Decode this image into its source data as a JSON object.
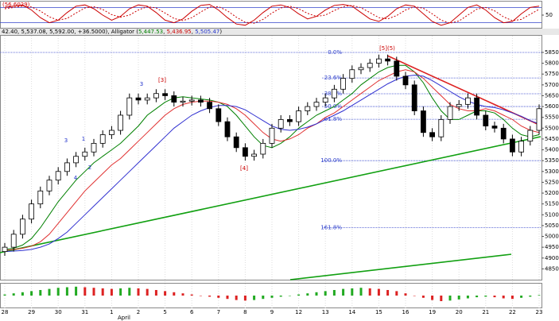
{
  "chart_data": [
    {
      "type": "line",
      "title": "(56.6029)",
      "ylim": [
        0,
        100
      ],
      "yticks": [
        50
      ],
      "levels": [
        20,
        80
      ],
      "level_color": "#3344cc",
      "series": [
        {
          "color": "#cc0000",
          "values": [
            80,
            85,
            90,
            70,
            40,
            20,
            30,
            60,
            85,
            90,
            75,
            50,
            30,
            45,
            75,
            90,
            85,
            60,
            30,
            20,
            35,
            65,
            88,
            92,
            70,
            40,
            15,
            10,
            30,
            60,
            85,
            90,
            80,
            55,
            35,
            45,
            70,
            88,
            92,
            85,
            60,
            35,
            25,
            45,
            75,
            90,
            85,
            55,
            25,
            10,
            20,
            50,
            80,
            90,
            70,
            40,
            20,
            25,
            55,
            80,
            85
          ]
        },
        {
          "color": "#cc0000",
          "dash": true,
          "values": [
            75,
            80,
            85,
            82,
            66,
            43,
            30,
            37,
            58,
            78,
            83,
            72,
            52,
            42,
            50,
            70,
            83,
            78,
            58,
            37,
            28,
            40,
            62,
            82,
            83,
            67,
            42,
            22,
            18,
            33,
            58,
            78,
            85,
            75,
            57,
            45,
            50,
            68,
            83,
            88,
            79,
            60,
            40,
            35,
            48,
            70,
            83,
            77,
            55,
            30,
            18,
            27,
            50,
            73,
            80,
            67,
            43,
            28,
            33,
            53,
            73
          ]
        }
      ]
    },
    {
      "type": "candlestick",
      "header": "42.40, 5,537.08, 5,592.00, +36.5000), ",
      "indicator": "Alligator (",
      "indicator_values": [
        {
          "label": "5,447.53",
          "color": "#008000"
        },
        {
          "label": "5,436.95",
          "color": "#cc0000"
        },
        {
          "label": "5,505.47",
          "color": "#2233cc"
        }
      ],
      "indicator_close": ")",
      "x_group_label": "April",
      "categories": [
        "28",
        null,
        null,
        "29",
        null,
        null,
        "30",
        null,
        null,
        "31",
        null,
        null,
        "1",
        null,
        null,
        "2",
        null,
        null,
        "5",
        null,
        null,
        "6",
        null,
        null,
        "7",
        null,
        null,
        "8",
        null,
        null,
        "9",
        null,
        null,
        "12",
        null,
        null,
        "13",
        null,
        null,
        "14",
        null,
        null,
        "15",
        null,
        null,
        "16",
        null,
        null,
        "19",
        null,
        null,
        "20",
        null,
        null,
        "21",
        null,
        null,
        "22",
        null,
        null,
        "23"
      ],
      "open": [
        4930,
        4950,
        5010,
        5080,
        5150,
        5210,
        5260,
        5300,
        5340,
        5370,
        5390,
        5430,
        5470,
        5490,
        5560,
        5640,
        5630,
        5640,
        5660,
        5650,
        5620,
        5625,
        5630,
        5620,
        5590,
        5530,
        5460,
        5410,
        5370,
        5380,
        5430,
        5500,
        5540,
        5530,
        5580,
        5600,
        5620,
        5640,
        5680,
        5730,
        5770,
        5780,
        5800,
        5820,
        5810,
        5740,
        5700,
        5580,
        5480,
        5460,
        5540,
        5600,
        5610,
        5640,
        5560,
        5510,
        5500,
        5450,
        5390,
        5440,
        5490
      ],
      "high": [
        4970,
        5030,
        5100,
        5170,
        5230,
        5280,
        5320,
        5360,
        5390,
        5410,
        5450,
        5490,
        5510,
        5580,
        5660,
        5660,
        5660,
        5680,
        5680,
        5670,
        5645,
        5650,
        5650,
        5640,
        5610,
        5550,
        5480,
        5430,
        5400,
        5450,
        5520,
        5560,
        5560,
        5600,
        5620,
        5640,
        5660,
        5700,
        5750,
        5790,
        5800,
        5820,
        5840,
        5840,
        5830,
        5760,
        5720,
        5600,
        5500,
        5560,
        5620,
        5630,
        5660,
        5660,
        5580,
        5530,
        5520,
        5470,
        5460,
        5510,
        5610
      ],
      "low": [
        4910,
        4930,
        4990,
        5060,
        5130,
        5190,
        5240,
        5280,
        5320,
        5350,
        5370,
        5410,
        5450,
        5470,
        5540,
        5610,
        5610,
        5620,
        5630,
        5600,
        5600,
        5605,
        5600,
        5570,
        5510,
        5440,
        5390,
        5350,
        5350,
        5360,
        5410,
        5480,
        5510,
        5510,
        5560,
        5580,
        5600,
        5620,
        5660,
        5710,
        5750,
        5760,
        5780,
        5790,
        5720,
        5680,
        5560,
        5460,
        5440,
        5440,
        5520,
        5580,
        5590,
        5540,
        5490,
        5480,
        5430,
        5370,
        5370,
        5420,
        5470
      ],
      "close": [
        4950,
        5010,
        5080,
        5150,
        5210,
        5260,
        5300,
        5340,
        5370,
        5390,
        5430,
        5470,
        5490,
        5560,
        5640,
        5630,
        5640,
        5660,
        5650,
        5620,
        5625,
        5630,
        5620,
        5590,
        5530,
        5460,
        5410,
        5370,
        5380,
        5430,
        5500,
        5540,
        5530,
        5580,
        5600,
        5620,
        5640,
        5680,
        5730,
        5770,
        5780,
        5800,
        5820,
        5810,
        5740,
        5700,
        5580,
        5480,
        5460,
        5540,
        5600,
        5610,
        5640,
        5560,
        5510,
        5500,
        5450,
        5390,
        5440,
        5490,
        5590
      ],
      "series": [
        {
          "color": "#008000",
          "values": [
            4940,
            4945,
            4960,
            4990,
            5040,
            5100,
            5160,
            5210,
            5260,
            5300,
            5340,
            5370,
            5400,
            5430,
            5470,
            5510,
            5560,
            5590,
            5620,
            5640,
            5645,
            5640,
            5635,
            5630,
            5620,
            5600,
            5560,
            5510,
            5460,
            5420,
            5410,
            5430,
            5460,
            5500,
            5530,
            5560,
            5580,
            5600,
            5630,
            5660,
            5700,
            5730,
            5760,
            5780,
            5790,
            5790,
            5760,
            5710,
            5640,
            5580,
            5540,
            5540,
            5560,
            5580,
            5580,
            5570,
            5540,
            5500,
            5470,
            5460,
            5470
          ]
        },
        {
          "color": "#e03030",
          "values": [
            4935,
            4940,
            4945,
            4955,
            4975,
            5010,
            5060,
            5110,
            5160,
            5210,
            5250,
            5290,
            5330,
            5360,
            5400,
            5440,
            5480,
            5520,
            5560,
            5590,
            5610,
            5620,
            5625,
            5625,
            5620,
            5610,
            5590,
            5560,
            5520,
            5480,
            5450,
            5440,
            5450,
            5470,
            5500,
            5520,
            5550,
            5570,
            5600,
            5630,
            5660,
            5690,
            5720,
            5740,
            5760,
            5770,
            5760,
            5730,
            5690,
            5650,
            5610,
            5590,
            5580,
            5580,
            5590,
            5580,
            5560,
            5540,
            5510,
            5490,
            5480
          ]
        },
        {
          "color": "#3030d0",
          "values": [
            4930,
            4932,
            4935,
            4940,
            4950,
            4965,
            4990,
            5020,
            5060,
            5100,
            5140,
            5180,
            5220,
            5260,
            5300,
            5340,
            5380,
            5420,
            5460,
            5500,
            5530,
            5560,
            5580,
            5595,
            5605,
            5605,
            5600,
            5585,
            5560,
            5535,
            5510,
            5495,
            5490,
            5495,
            5505,
            5520,
            5540,
            5560,
            5580,
            5605,
            5630,
            5655,
            5680,
            5705,
            5725,
            5740,
            5745,
            5740,
            5720,
            5695,
            5670,
            5645,
            5625,
            5610,
            5600,
            5595,
            5585,
            5570,
            5555,
            5535,
            5520
          ]
        }
      ],
      "ylim": [
        4800,
        5927
      ],
      "yticks": [
        4850,
        4900,
        4950,
        5000,
        5050,
        5100,
        5150,
        5200,
        5250,
        5300,
        5350,
        5400,
        5450,
        5500,
        5550,
        5600,
        5650,
        5700,
        5750,
        5800,
        5850
      ],
      "fib_color": "#3344cc",
      "fib": [
        {
          "label": "0.0%",
          "value": 5850
        },
        {
          "label": "23.6%",
          "value": 5732
        },
        {
          "label": "38.2%",
          "value": 5659
        },
        {
          "label": "50.0%",
          "value": 5600
        },
        {
          "label": "61.8%",
          "value": 5541
        },
        {
          "label": "100.0%",
          "value": 5350
        },
        {
          "label": "161.8%",
          "value": 5041
        }
      ],
      "annotations": [
        {
          "text": "3",
          "color": "#2233cc"
        },
        {
          "text": "1",
          "color": "#2233cc"
        },
        {
          "text": "2",
          "color": "#2233cc"
        },
        {
          "text": "4",
          "color": "#2233cc"
        },
        {
          "text": "3",
          "color": "#2233cc"
        },
        {
          "text": "[3]",
          "color": "#cc0000"
        },
        {
          "text": "[4]",
          "color": "#cc0000"
        },
        {
          "text": "[5](5)",
          "color": "#cc0000"
        }
      ]
    },
    {
      "type": "bar",
      "ylim": [
        -20,
        20
      ],
      "up_color": "#22aa22",
      "down_color": "#dd2222",
      "values": [
        2,
        4,
        6,
        8,
        10,
        12,
        14,
        15,
        16,
        15,
        14,
        13,
        12,
        13,
        14,
        13,
        12,
        10,
        8,
        6,
        4,
        2,
        0,
        -2,
        -4,
        -6,
        -8,
        -9,
        -8,
        -6,
        -4,
        -2,
        0,
        2,
        4,
        6,
        8,
        10,
        12,
        13,
        14,
        13,
        12,
        10,
        8,
        4,
        0,
        -4,
        -8,
        -10,
        -9,
        -7,
        -5,
        -3,
        -2,
        -3,
        -5,
        -6,
        -4,
        -2,
        1
      ]
    }
  ]
}
